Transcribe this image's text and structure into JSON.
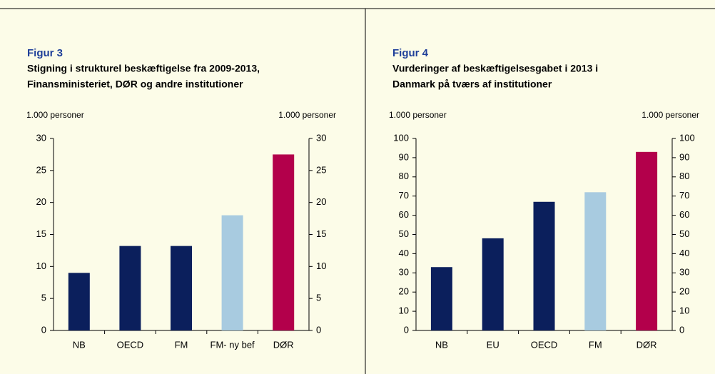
{
  "chart_data": [
    {
      "type": "bar",
      "title": "Figur 3",
      "subtitle": [
        "Stigning i strukturel beskæftigelse fra 2009-2013,",
        "Finansministeriet, DØR og andre institutioner"
      ],
      "ylabel": "1.000 personer",
      "y2label": "1.000 personer",
      "categories": [
        "NB",
        "OECD",
        "FM",
        "FM- ny bef",
        "DØR"
      ],
      "values": [
        9,
        13.2,
        13.2,
        18,
        27.5
      ],
      "colors": [
        "#0b1f5c",
        "#0b1f5c",
        "#0b1f5c",
        "#a8cbe0",
        "#b3004b"
      ],
      "ylim": [
        0,
        30
      ],
      "yticks": [
        0,
        5,
        10,
        15,
        20,
        25,
        30
      ],
      "y2lim": [
        0,
        30
      ],
      "y2ticks": [
        0,
        5,
        10,
        15,
        20,
        25,
        30
      ]
    },
    {
      "type": "bar",
      "title": "Figur 4",
      "subtitle": [
        "Vurderinger af beskæftigelsesgabet i 2013 i",
        "Danmark på tværs af institutioner"
      ],
      "ylabel": "1.000 personer",
      "y2label": "1.000 personer",
      "categories": [
        "NB",
        "EU",
        "OECD",
        "FM",
        "DØR"
      ],
      "values": [
        33,
        48,
        67,
        72,
        93
      ],
      "colors": [
        "#0b1f5c",
        "#0b1f5c",
        "#0b1f5c",
        "#a8cbe0",
        "#b3004b"
      ],
      "ylim": [
        0,
        100
      ],
      "yticks": [
        0,
        10,
        20,
        30,
        40,
        50,
        60,
        70,
        80,
        90,
        100
      ],
      "y2lim": [
        0,
        100
      ],
      "y2ticks": [
        0,
        10,
        20,
        30,
        40,
        50,
        60,
        70,
        80,
        90,
        100
      ]
    }
  ]
}
